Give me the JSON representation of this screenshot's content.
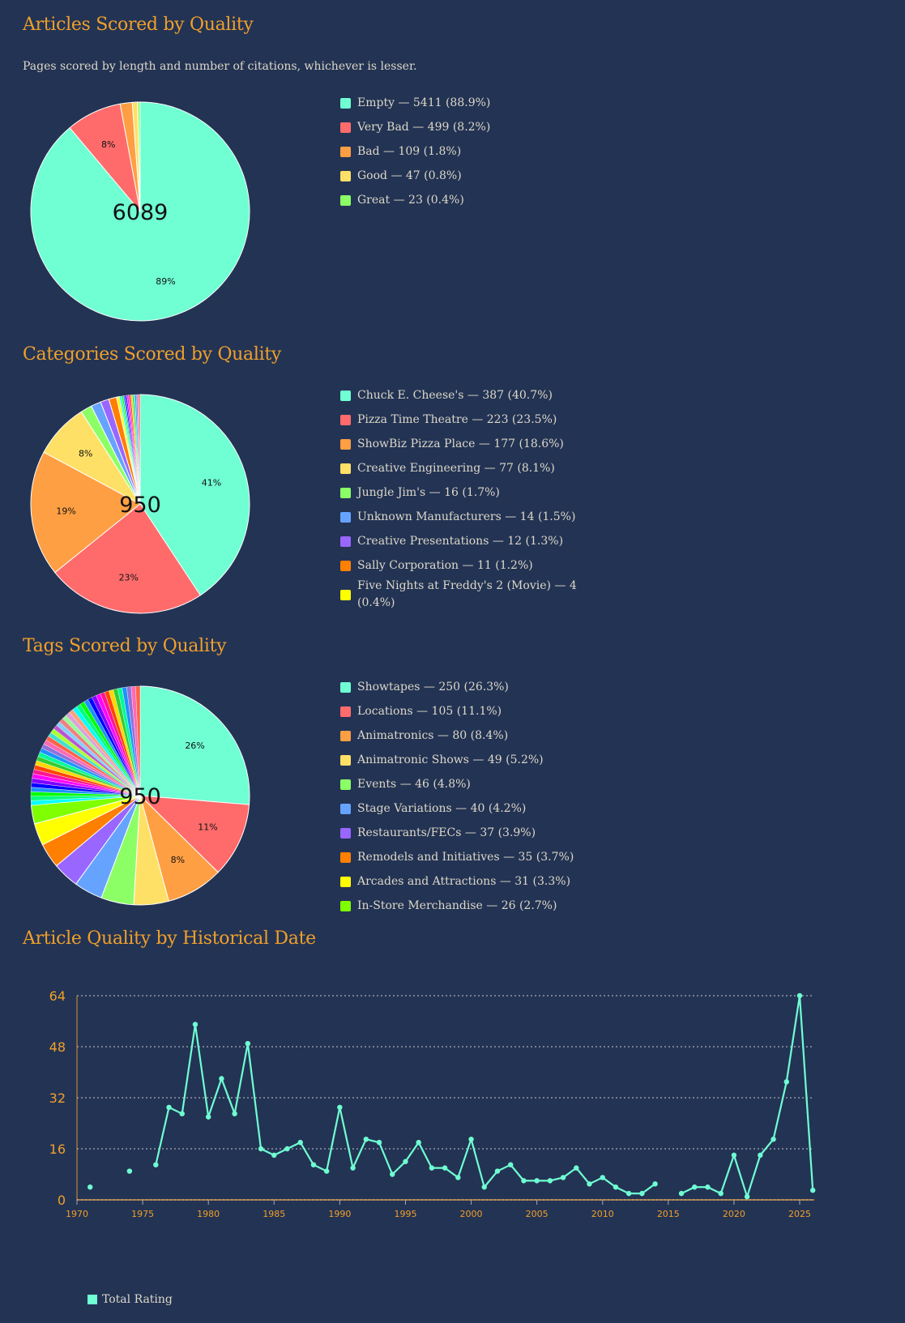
{
  "sections": {
    "articles": {
      "title": "Articles Scored by Quality",
      "subtitle": "Pages scored by length and number of citations, whichever is lesser."
    },
    "categories": {
      "title": "Categories Scored by Quality"
    },
    "tags": {
      "title": "Tags Scored by Quality"
    },
    "history": {
      "title": "Article Quality by Historical Date"
    }
  },
  "chart_data": [
    {
      "type": "pie",
      "id": "articles",
      "title": "Articles Scored by Quality",
      "center_label": "6089",
      "total": 6089,
      "slices": [
        {
          "label": "Empty",
          "value": 5411,
          "pct": "88.9%",
          "slice_label": "89%",
          "color": "#6fffd2"
        },
        {
          "label": "Very Bad",
          "value": 499,
          "pct": "8.2%",
          "slice_label": "8%",
          "color": "#ff6b6b"
        },
        {
          "label": "Bad",
          "value": 109,
          "pct": "1.8%",
          "slice_label": "",
          "color": "#ff9f43"
        },
        {
          "label": "Good",
          "value": 47,
          "pct": "0.8%",
          "slice_label": "",
          "color": "#ffe066"
        },
        {
          "label": "Great",
          "value": 23,
          "pct": "0.4%",
          "slice_label": "",
          "color": "#8cff66"
        }
      ],
      "legend": [
        "Empty — 5411 (88.9%)",
        "Very Bad — 499 (8.2%)",
        "Bad — 109 (1.8%)",
        "Good — 47 (0.8%)",
        "Great — 23 (0.4%)"
      ]
    },
    {
      "type": "pie",
      "id": "categories",
      "title": "Categories Scored by Quality",
      "center_label": "950",
      "total": 950,
      "slices": [
        {
          "label": "Chuck E. Cheese's",
          "value": 387,
          "pct": "40.7%",
          "slice_label": "41%",
          "color": "#6fffd2"
        },
        {
          "label": "Pizza Time Theatre",
          "value": 223,
          "pct": "23.5%",
          "slice_label": "23%",
          "color": "#ff6b6b"
        },
        {
          "label": "ShowBiz Pizza Place",
          "value": 177,
          "pct": "18.6%",
          "slice_label": "19%",
          "color": "#ff9f43"
        },
        {
          "label": "Creative Engineering",
          "value": 77,
          "pct": "8.1%",
          "slice_label": "8%",
          "color": "#ffe066"
        },
        {
          "label": "Jungle Jim's",
          "value": 16,
          "pct": "1.7%",
          "slice_label": "",
          "color": "#8cff66"
        },
        {
          "label": "Unknown Manufacturers",
          "value": 14,
          "pct": "1.5%",
          "slice_label": "",
          "color": "#66a3ff"
        },
        {
          "label": "Creative Presentations",
          "value": 12,
          "pct": "1.3%",
          "slice_label": "",
          "color": "#9966ff"
        },
        {
          "label": "Sally Corporation",
          "value": 11,
          "pct": "1.2%",
          "slice_label": "",
          "color": "#ff7f00"
        },
        {
          "label": "Five Nights at Freddy's 2 (Movie)",
          "value": 4,
          "pct": "0.4%",
          "slice_label": "",
          "color": "#ffff00"
        }
      ],
      "unlisted_remainder": 29,
      "legend": [
        "Chuck E. Cheese's — 387 (40.7%)",
        "Pizza Time Theatre — 223 (23.5%)",
        "ShowBiz Pizza Place — 177 (18.6%)",
        "Creative Engineering — 77 (8.1%)",
        "Jungle Jim's — 16 (1.7%)",
        "Unknown Manufacturers — 14 (1.5%)",
        "Creative Presentations — 12 (1.3%)",
        "Sally Corporation — 11 (1.2%)",
        "Five Nights at Freddy's 2 (Movie) — 4 (0.4%)"
      ]
    },
    {
      "type": "pie",
      "id": "tags",
      "title": "Tags Scored by Quality",
      "center_label": "950",
      "total": 950,
      "slices": [
        {
          "label": "Showtapes",
          "value": 250,
          "pct": "26.3%",
          "slice_label": "26%",
          "color": "#6fffd2"
        },
        {
          "label": "Locations",
          "value": 105,
          "pct": "11.1%",
          "slice_label": "11%",
          "color": "#ff6b6b"
        },
        {
          "label": "Animatronics",
          "value": 80,
          "pct": "8.4%",
          "slice_label": "8%",
          "color": "#ff9f43"
        },
        {
          "label": "Animatronic Shows",
          "value": 49,
          "pct": "5.2%",
          "slice_label": "",
          "color": "#ffe066"
        },
        {
          "label": "Events",
          "value": 46,
          "pct": "4.8%",
          "slice_label": "",
          "color": "#8cff66"
        },
        {
          "label": "Stage Variations",
          "value": 40,
          "pct": "4.2%",
          "slice_label": "",
          "color": "#66a3ff"
        },
        {
          "label": "Restaurants/FECs",
          "value": 37,
          "pct": "3.9%",
          "slice_label": "",
          "color": "#9966ff"
        },
        {
          "label": "Remodels and Initiatives",
          "value": 35,
          "pct": "3.7%",
          "slice_label": "",
          "color": "#ff7f00"
        },
        {
          "label": "Arcades and Attractions",
          "value": 31,
          "pct": "3.3%",
          "slice_label": "",
          "color": "#ffff00"
        },
        {
          "label": "In-Store Merchandise",
          "value": 26,
          "pct": "2.7%",
          "slice_label": "",
          "color": "#7fff00"
        }
      ],
      "unlisted_remainder": 251,
      "legend": [
        "Showtapes — 250 (26.3%)",
        "Locations — 105 (11.1%)",
        "Animatronics — 80 (8.4%)",
        "Animatronic Shows — 49 (5.2%)",
        "Events — 46 (4.8%)",
        "Stage Variations — 40 (4.2%)",
        "Restaurants/FECs — 37 (3.9%)",
        "Remodels and Initiatives — 35 (3.7%)",
        "Arcades and Attractions — 31 (3.3%)",
        "In-Store Merchandise — 26 (2.7%)"
      ]
    },
    {
      "type": "line",
      "id": "history",
      "title": "Article Quality by Historical Date",
      "xlabel": "",
      "ylabel": "",
      "xlim": [
        1970,
        2026
      ],
      "ylim": [
        0,
        64
      ],
      "yticks": [
        0,
        16,
        32,
        48,
        64
      ],
      "xticks": [
        1970,
        1975,
        1980,
        1985,
        1990,
        1995,
        2000,
        2005,
        2010,
        2015,
        2020,
        2025
      ],
      "grid": true,
      "legend_position": "bottom-left",
      "series": [
        {
          "name": "Total Rating",
          "color": "#6fffd2",
          "x": [
            1971,
            1972,
            1973,
            1974,
            1975,
            1976,
            1977,
            1978,
            1979,
            1980,
            1981,
            1982,
            1983,
            1984,
            1985,
            1986,
            1987,
            1988,
            1989,
            1990,
            1991,
            1992,
            1993,
            1994,
            1995,
            1996,
            1997,
            1998,
            1999,
            2000,
            2001,
            2002,
            2003,
            2004,
            2005,
            2006,
            2007,
            2008,
            2009,
            2010,
            2011,
            2012,
            2013,
            2014,
            2015,
            2016,
            2017,
            2018,
            2019,
            2020,
            2021,
            2022,
            2023,
            2024,
            2025,
            2026
          ],
          "values": [
            4,
            null,
            null,
            9,
            null,
            11,
            29,
            27,
            55,
            26,
            38,
            27,
            49,
            16,
            14,
            16,
            18,
            11,
            9,
            29,
            10,
            19,
            18,
            8,
            12,
            18,
            10,
            10,
            7,
            19,
            4,
            9,
            11,
            6,
            6,
            6,
            7,
            10,
            5,
            7,
            4,
            2,
            2,
            5,
            null,
            2,
            4,
            4,
            2,
            14,
            1,
            14,
            19,
            37,
            64,
            3
          ]
        }
      ]
    }
  ],
  "line_legend": {
    "label": "Total Rating"
  }
}
